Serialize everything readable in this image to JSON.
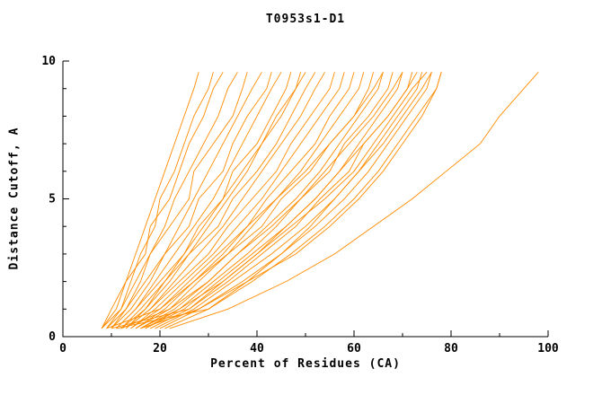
{
  "title": "T0953s1-D1",
  "chart_data": {
    "type": "line",
    "title": "T0953s1-D1",
    "xlabel": "Percent of Residues (CA)",
    "ylabel": "Distance Cutoff, A",
    "xlim": [
      0,
      100
    ],
    "ylim": [
      0,
      10
    ],
    "x_ticks": [
      0,
      20,
      40,
      60,
      80,
      100
    ],
    "y_ticks": [
      0,
      5,
      10
    ],
    "x_minor_step": 10,
    "y_minor_step": 1,
    "grid": false,
    "legend": "none",
    "line_color": "#ff8c00",
    "axis_color": "#000000",
    "y_grid": [
      0.3,
      1,
      2,
      3,
      4,
      5,
      6,
      7,
      8,
      9,
      9.6
    ],
    "series": [
      {
        "x": [
          8,
          10,
          13,
          15,
          17,
          19,
          21,
          23,
          25,
          27,
          28
        ]
      },
      {
        "x": [
          8,
          11,
          13,
          17,
          18,
          22,
          24,
          26,
          29,
          31,
          33
        ]
      },
      {
        "x": [
          9,
          12,
          15,
          18,
          21,
          23,
          26,
          29,
          32,
          34,
          36
        ]
      },
      {
        "x": [
          9,
          13,
          16,
          18,
          22,
          26,
          27,
          31,
          35,
          37,
          38
        ]
      },
      {
        "x": [
          10,
          13,
          17,
          21,
          24,
          27,
          30,
          33,
          36,
          39,
          41
        ]
      },
      {
        "x": [
          10,
          14,
          18,
          21,
          26,
          28,
          33,
          35,
          38,
          42,
          43
        ]
      },
      {
        "x": [
          11,
          15,
          19,
          23,
          27,
          31,
          34,
          37,
          40,
          43,
          45
        ]
      },
      {
        "x": [
          11,
          15,
          20,
          25,
          28,
          33,
          35,
          40,
          43,
          46,
          47
        ]
      },
      {
        "x": [
          12,
          16,
          21,
          26,
          30,
          34,
          38,
          41,
          45,
          48,
          49
        ]
      },
      {
        "x": [
          12,
          17,
          22,
          26,
          32,
          35,
          40,
          44,
          47,
          50,
          52
        ]
      },
      {
        "x": [
          13,
          18,
          23,
          28,
          33,
          37,
          41,
          45,
          49,
          52,
          54
        ]
      },
      {
        "x": [
          13,
          18,
          24,
          30,
          34,
          39,
          44,
          47,
          51,
          55,
          56
        ]
      },
      {
        "x": [
          14,
          19,
          25,
          31,
          36,
          41,
          45,
          49,
          53,
          57,
          58
        ]
      },
      {
        "x": [
          14,
          20,
          26,
          32,
          38,
          42,
          47,
          52,
          55,
          59,
          60
        ]
      },
      {
        "x": [
          15,
          21,
          27,
          34,
          39,
          44,
          49,
          53,
          57,
          61,
          62
        ]
      },
      {
        "x": [
          15,
          22,
          28,
          34,
          41,
          45,
          51,
          55,
          60,
          63,
          64
        ]
      },
      {
        "x": [
          16,
          23,
          30,
          36,
          42,
          48,
          53,
          57,
          61,
          65,
          66
        ]
      },
      {
        "x": [
          16,
          24,
          31,
          38,
          44,
          49,
          55,
          58,
          63,
          67,
          68
        ]
      },
      {
        "x": [
          17,
          25,
          32,
          39,
          46,
          52,
          57,
          61,
          65,
          69,
          70
        ]
      },
      {
        "x": [
          18,
          26,
          34,
          41,
          48,
          53,
          59,
          62,
          67,
          71,
          72
        ]
      },
      {
        "x": [
          19,
          27,
          35,
          43,
          50,
          56,
          61,
          65,
          69,
          73,
          74
        ]
      },
      {
        "x": [
          20,
          28,
          37,
          45,
          52,
          58,
          63,
          67,
          71,
          75,
          76
        ]
      },
      {
        "x": [
          21,
          30,
          39,
          47,
          54,
          60,
          65,
          69,
          73,
          77,
          78
        ]
      },
      {
        "x": [
          10,
          26,
          33,
          40,
          46,
          52,
          57,
          62,
          67,
          71,
          73
        ]
      },
      {
        "x": [
          11,
          30,
          38,
          45,
          51,
          56,
          61,
          66,
          70,
          74,
          76
        ]
      },
      {
        "x": [
          9,
          20,
          27,
          33,
          38,
          44,
          50,
          55,
          60,
          64,
          66
        ]
      },
      {
        "x": [
          12,
          22,
          30,
          36,
          43,
          49,
          54,
          59,
          64,
          68,
          70
        ]
      },
      {
        "x": [
          17,
          24,
          33,
          40,
          47,
          54,
          60,
          64,
          68,
          72,
          75
        ]
      },
      {
        "x": [
          16,
          28,
          38,
          48,
          55,
          61,
          66,
          70,
          74,
          77,
          78
        ]
      },
      {
        "x": [
          22,
          34,
          46,
          56,
          64,
          72,
          79,
          86,
          90,
          95,
          98
        ]
      },
      {
        "x": [
          8,
          12,
          14,
          16,
          19,
          20,
          23,
          25,
          27,
          30,
          31
        ]
      },
      {
        "x": [
          13,
          17,
          21,
          25,
          29,
          33,
          37,
          41,
          44,
          48,
          50
        ]
      }
    ]
  }
}
